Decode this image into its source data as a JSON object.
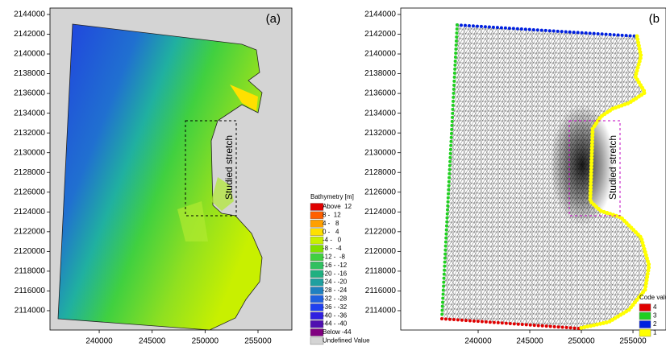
{
  "panels": [
    {
      "label": "(a)",
      "annotation": "Studied stretch",
      "xlim": [
        235350,
        258200
      ],
      "ylim": [
        2112040,
        2144650
      ],
      "xticks": [
        240000,
        245000,
        250000,
        255000
      ],
      "yticks": [
        2114000,
        2116000,
        2118000,
        2120000,
        2122000,
        2124000,
        2126000,
        2128000,
        2130000,
        2132000,
        2134000,
        2136000,
        2138000,
        2140000,
        2142000,
        2144000
      ],
      "legend": {
        "title": "Bathymetry [m]",
        "items": [
          {
            "label": "Above  12",
            "color": "#e00000"
          },
          {
            "label": "8 -  12",
            "color": "#ff6000"
          },
          {
            "label": "4 -   8",
            "color": "#ffa000"
          },
          {
            "label": "0 -   4",
            "color": "#ffe000"
          },
          {
            "label": "-4 -   0",
            "color": "#c8f000"
          },
          {
            "label": "-8 -  -4",
            "color": "#80e000"
          },
          {
            "label": "-12 -  -8",
            "color": "#40d040"
          },
          {
            "label": "-16 - -12",
            "color": "#30c060"
          },
          {
            "label": "-20 - -16",
            "color": "#20b080"
          },
          {
            "label": "-24 - -20",
            "color": "#20a0a0"
          },
          {
            "label": "-28 - -24",
            "color": "#2080c0"
          },
          {
            "label": "-32 - -28",
            "color": "#2060e0"
          },
          {
            "label": "-36 - -32",
            "color": "#2040f0"
          },
          {
            "label": "-40 - -36",
            "color": "#3020e0"
          },
          {
            "label": "-44 - -40",
            "color": "#5010b0"
          },
          {
            "label": "Below -44",
            "color": "#800080"
          },
          {
            "label": "Undefined Value",
            "color": "#d4d4d4"
          }
        ]
      }
    },
    {
      "label": "(b",
      "annotation": "Studied stretch",
      "xlim": [
        232500,
        258200
      ],
      "ylim": [
        2112040,
        2144650
      ],
      "xticks": [
        240000,
        245000,
        250000,
        255000
      ],
      "yticks": [
        2114000,
        2116000,
        2118000,
        2120000,
        2122000,
        2124000,
        2126000,
        2128000,
        2130000,
        2132000,
        2134000,
        2136000,
        2138000,
        2140000,
        2142000,
        2144000
      ],
      "legend": {
        "title": "Code valu",
        "items": [
          {
            "label": "4",
            "color": "#e00000"
          },
          {
            "label": "3",
            "color": "#20d020"
          },
          {
            "label": "2",
            "color": "#0020e0"
          },
          {
            "label": "1",
            "color": "#ffff00"
          }
        ]
      }
    }
  ]
}
